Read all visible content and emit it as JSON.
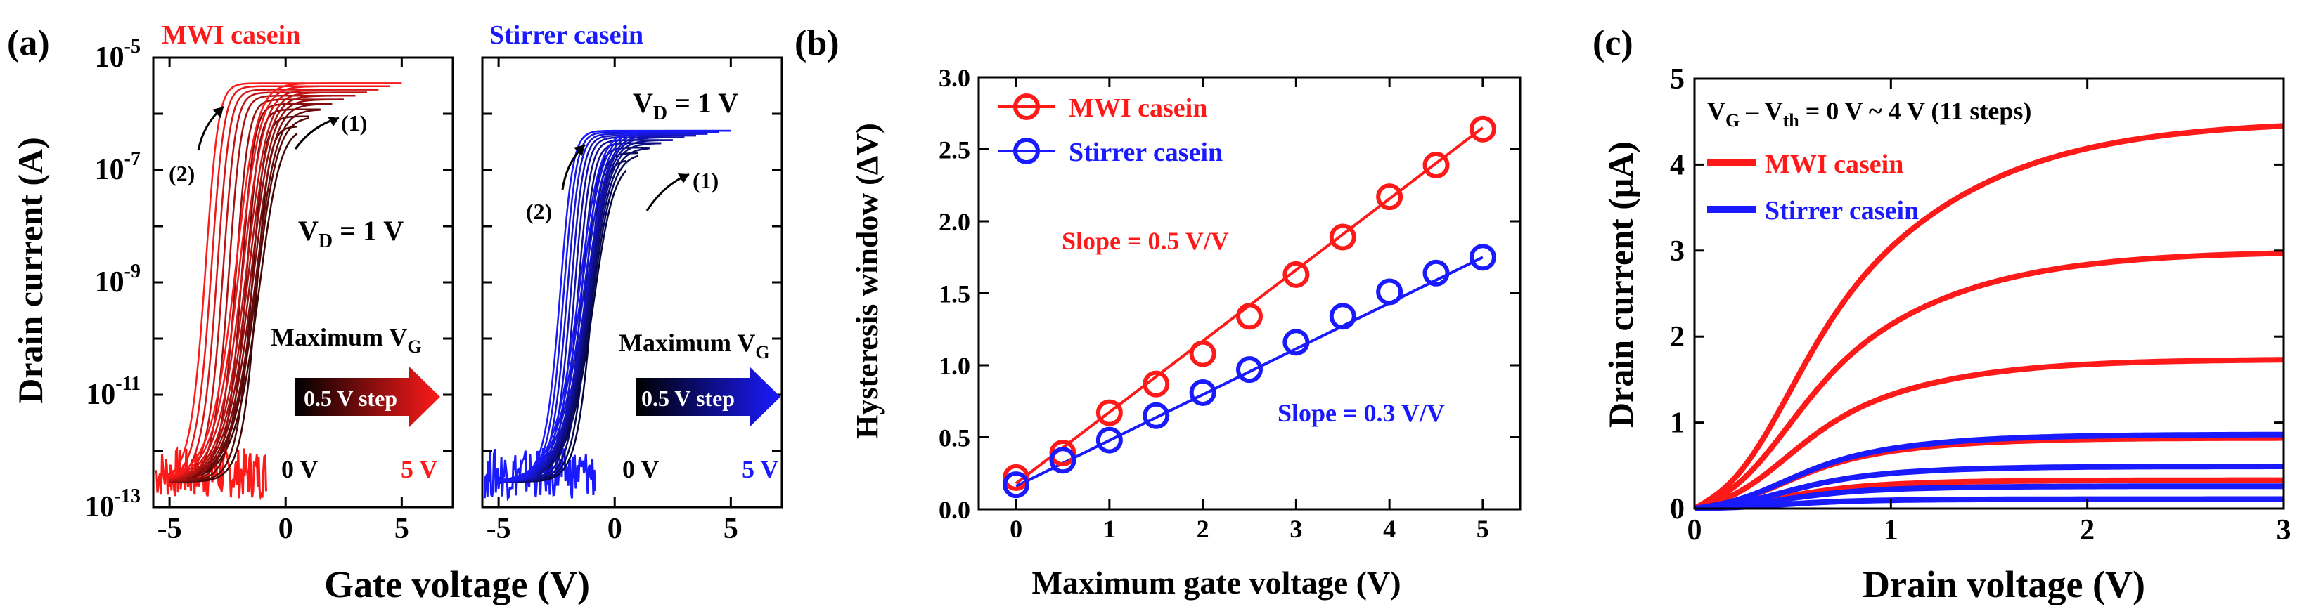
{
  "colors": {
    "red": "#ff1a1a",
    "blue": "#1a1aff",
    "black": "#000000"
  },
  "chart_data": [
    {
      "panel": "(a)",
      "type": "line",
      "subtype": "transfer-curve hysteresis (semilog)",
      "xlabel": "Gate voltage (V)",
      "ylabel": "Drain current (A)",
      "yscale": "log",
      "xlim": [
        -5.7,
        7.2
      ],
      "ylim": [
        1e-13,
        1e-05
      ],
      "x_ticks": [
        "-5",
        "0",
        "5"
      ],
      "y_ticks": [
        {
          "base": "10",
          "exp": "-5"
        },
        {
          "base": "10",
          "exp": "-7"
        },
        {
          "base": "10",
          "exp": "-9"
        },
        {
          "base": "10",
          "exp": "-11"
        },
        {
          "base": "10",
          "exp": "-13"
        }
      ],
      "ioff": 4e-13,
      "sweep_max_vg": [
        0.5,
        1.0,
        1.5,
        2.0,
        2.5,
        3.0,
        3.5,
        4.0,
        4.5,
        5.0
      ],
      "subpanels": [
        {
          "title": "MWI casein",
          "color": "#ff1a1a",
          "vd_text": {
            "main": "V",
            "sub": "D",
            "rest": " = 1 V"
          },
          "forward_vth": [
            -0.9,
            -1.0,
            -1.05,
            -1.15,
            -1.25,
            -1.35,
            -1.45,
            -1.6,
            -1.75,
            -1.9
          ],
          "reverse_vth": [
            -1.1,
            -1.3,
            -1.55,
            -1.75,
            -2.0,
            -2.3,
            -2.55,
            -2.8,
            -3.05,
            -3.3
          ],
          "ion": [
            6e-07,
            9e-07,
            1.2e-06,
            1.5e-06,
            1.8e-06,
            2.1e-06,
            2.4e-06,
            2.7e-06,
            3.1e-06,
            3.5e-06
          ],
          "sweep_labels": [
            "(1)",
            "(2)"
          ],
          "legend_title": {
            "main": "Maximum V",
            "sub": "G"
          },
          "step_label": "0.5 V step",
          "range_start": "0 V",
          "range_end": "5 V"
        },
        {
          "title": "Stirrer casein",
          "color": "#1a1aff",
          "vd_text": {
            "main": "V",
            "sub": "D",
            "rest": " = 1 V"
          },
          "forward_vth": [
            -0.7,
            -0.75,
            -0.8,
            -0.85,
            -0.9,
            -0.95,
            -1.0,
            -1.1,
            -1.2,
            -1.3
          ],
          "reverse_vth": [
            -0.85,
            -1.0,
            -1.15,
            -1.3,
            -1.45,
            -1.6,
            -1.75,
            -1.9,
            -2.05,
            -2.2
          ],
          "ion": [
            1.5e-07,
            2e-07,
            2.5e-07,
            3e-07,
            3.4e-07,
            3.8e-07,
            4.1e-07,
            4.4e-07,
            4.7e-07,
            5e-07
          ],
          "sweep_labels": [
            "(1)",
            "(2)"
          ],
          "legend_title": {
            "main": "Maximum V",
            "sub": "G"
          },
          "step_label": "0.5 V step",
          "range_start": "0 V",
          "range_end": "5 V"
        }
      ]
    },
    {
      "panel": "(b)",
      "type": "scatter",
      "xlabel": "Maximum gate voltage (V)",
      "ylabel": "Hysteresis window (ΔV)",
      "xlim": [
        -0.4,
        5.4
      ],
      "ylim": [
        0,
        3.0
      ],
      "x_ticks": [
        "0",
        "1",
        "2",
        "3",
        "4",
        "5"
      ],
      "y_ticks": [
        "0.0",
        "0.5",
        "1.0",
        "1.5",
        "2.0",
        "2.5",
        "3.0"
      ],
      "x": [
        0,
        0.5,
        1.0,
        1.5,
        2.0,
        2.5,
        3.0,
        3.5,
        4.0,
        4.5,
        5.0
      ],
      "series": [
        {
          "name": "MWI casein",
          "color": "#ff1a1a",
          "values": [
            0.22,
            0.39,
            0.67,
            0.87,
            1.08,
            1.34,
            1.63,
            1.89,
            2.17,
            2.39,
            2.64
          ],
          "fit": {
            "x0": 0,
            "y0": 0.18,
            "x1": 5,
            "y1": 2.65
          },
          "slope_label": "Slope = 0.5 V/V"
        },
        {
          "name": "Stirrer casein",
          "color": "#1a1aff",
          "values": [
            0.17,
            0.34,
            0.48,
            0.65,
            0.81,
            0.97,
            1.16,
            1.34,
            1.51,
            1.64,
            1.75
          ],
          "fit": {
            "x0": 0,
            "y0": 0.16,
            "x1": 5,
            "y1": 1.75
          },
          "slope_label": "Slope = 0.3 V/V"
        }
      ]
    },
    {
      "panel": "(c)",
      "type": "line",
      "subtype": "output characteristics",
      "xlabel": "Drain voltage (V)",
      "ylabel": "Drain current (μA)",
      "xlim": [
        0,
        3
      ],
      "ylim": [
        0,
        5
      ],
      "x_ticks": [
        "0",
        "1",
        "2",
        "3"
      ],
      "y_ticks": [
        "0",
        "1",
        "2",
        "3",
        "4",
        "5"
      ],
      "annotation": {
        "v": "V",
        "g": "G",
        "dash": " – V",
        "th": "th",
        "rest": " = 0 V ~ 4 V (11 steps)"
      },
      "series": [
        {
          "name": "MWI casein",
          "color": "#ff1a1a",
          "saturation_currents": [
            4.45,
            2.97,
            1.73,
            0.82,
            0.33
          ]
        },
        {
          "name": "Stirrer casein",
          "color": "#1a1aff",
          "saturation_currents": [
            0.86,
            0.49,
            0.26,
            0.11
          ]
        }
      ]
    }
  ]
}
